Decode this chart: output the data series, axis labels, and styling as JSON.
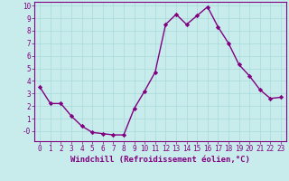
{
  "x": [
    0,
    1,
    2,
    3,
    4,
    5,
    6,
    7,
    8,
    9,
    10,
    11,
    12,
    13,
    14,
    15,
    16,
    17,
    18,
    19,
    20,
    21,
    22,
    23
  ],
  "y": [
    3.5,
    2.2,
    2.2,
    1.2,
    0.4,
    -0.1,
    -0.2,
    -0.3,
    -0.3,
    1.8,
    3.2,
    4.7,
    8.5,
    9.3,
    8.5,
    9.2,
    9.9,
    8.3,
    7.0,
    5.3,
    4.4,
    3.3,
    2.6,
    2.7
  ],
  "line_color": "#800080",
  "marker": "D",
  "marker_size": 2.2,
  "linewidth": 1.0,
  "xlabel": "Windchill (Refroidissement éolien,°C)",
  "xlabel_fontsize": 6.5,
  "xlim": [
    -0.5,
    23.5
  ],
  "ylim": [
    -0.8,
    10.3
  ],
  "yticks": [
    0,
    1,
    2,
    3,
    4,
    5,
    6,
    7,
    8,
    9,
    10
  ],
  "ytick_labels": [
    "-0",
    "1",
    "2",
    "3",
    "4",
    "5",
    "6",
    "7",
    "8",
    "9",
    "10"
  ],
  "xticks": [
    0,
    1,
    2,
    3,
    4,
    5,
    6,
    7,
    8,
    9,
    10,
    11,
    12,
    13,
    14,
    15,
    16,
    17,
    18,
    19,
    20,
    21,
    22,
    23
  ],
  "grid_color": "#a8d8d8",
  "bg_color": "#c8ecec",
  "tick_label_fontsize": 5.5,
  "tick_color": "#800080",
  "axis_color": "#800080"
}
